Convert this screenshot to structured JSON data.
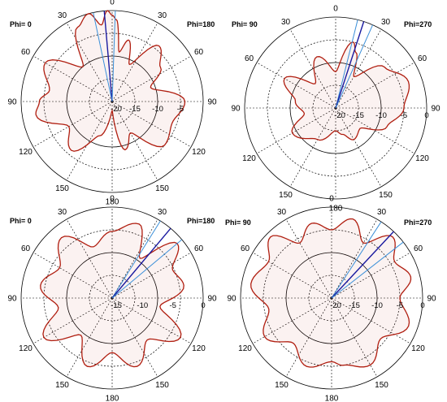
{
  "colors": {
    "curve": "#b01e10",
    "beam_light": "#3a8fd8",
    "beam_dark": "#1a1aa0"
  },
  "chart_data": [
    {
      "type": "polar",
      "phi_left": "Phi=  0",
      "phi_right": "Phi=180",
      "angle_labels": [
        "0",
        "30",
        "60",
        "90",
        "120",
        "150",
        "180",
        "150",
        "120",
        "90",
        "60",
        "30"
      ],
      "radial_ticks": [
        "-20",
        "-15",
        "-10",
        "-5"
      ],
      "rlim": [
        -20,
        0
      ],
      "beam_angles": [
        -12,
        -5,
        2
      ],
      "pattern": {
        "theta": [
          -180,
          -160,
          -140,
          -120,
          -100,
          -90,
          -80,
          -60,
          -40,
          -25,
          -15,
          -8,
          -3,
          0,
          3,
          8,
          15,
          25,
          40,
          55,
          70,
          90,
          110,
          130,
          150,
          165,
          180
        ],
        "r_db": [
          -18,
          -12,
          -6,
          -9,
          -3,
          -4,
          -6,
          -3,
          -10,
          -2,
          0,
          -3,
          0,
          -1,
          -2,
          -9,
          -6,
          -11,
          -4,
          -7,
          -11,
          -4,
          -6,
          -5,
          -12,
          -9,
          -18
        ]
      }
    },
    {
      "type": "polar",
      "phi_left": "Phi= 90",
      "phi_right": "Phi=270",
      "angle_labels": [
        "0",
        "30",
        "60",
        "90",
        "120",
        "150",
        "180",
        "150",
        "120",
        "90",
        "60",
        "30"
      ],
      "radial_ticks": [
        "-20",
        "-15",
        "-10",
        "-5",
        "0"
      ],
      "rlim": [
        -20,
        0
      ],
      "beam_angles": [
        14,
        18,
        24
      ],
      "pattern": {
        "theta": [
          -180,
          -150,
          -120,
          -100,
          -80,
          -60,
          -40,
          -20,
          0,
          15,
          20,
          30,
          50,
          70,
          90,
          110,
          130,
          150,
          165,
          180
        ],
        "r_db": [
          -15,
          -12,
          -9,
          -13,
          -11,
          -7,
          -13,
          -8,
          -12,
          -5,
          -7,
          -12,
          -6,
          -3,
          -5,
          -8,
          -13,
          -12,
          -14,
          -15
        ]
      }
    },
    {
      "type": "polar",
      "phi_left": "Phi=  0",
      "phi_right": "Phi=180",
      "angle_labels": [
        "0",
        "30",
        "60",
        "90",
        "120",
        "150",
        "180",
        "150",
        "120",
        "90",
        "60",
        "30"
      ],
      "radial_ticks": [
        "-15",
        "-10",
        "-5",
        "0"
      ],
      "rlim": [
        -15,
        0
      ],
      "beam_angles": [
        32,
        40,
        50
      ],
      "pattern": {
        "theta": [
          -180,
          -160,
          -140,
          -120,
          -100,
          -80,
          -60,
          -40,
          -20,
          0,
          20,
          35,
          50,
          65,
          80,
          100,
          120,
          140,
          160,
          180
        ],
        "r_db": [
          -6,
          -3,
          -7,
          -2,
          -6,
          -3,
          -5,
          -2,
          -6,
          -4,
          -2,
          -7,
          -1,
          -4,
          -3,
          -7,
          -2,
          -6,
          -3,
          -6
        ]
      }
    },
    {
      "type": "polar",
      "phi_left": "Phi= 90",
      "phi_right": "Phi=270",
      "angle_labels": [
        "0",
        "30",
        "60",
        "90",
        "120",
        "150",
        "180",
        "150",
        "120",
        "90",
        "60",
        "30"
      ],
      "radial_ticks": [
        "-20",
        "-15",
        "-10",
        "-5",
        "0"
      ],
      "rlim": [
        -20,
        0
      ],
      "beam_angles": [
        33,
        43,
        52
      ],
      "pattern": {
        "theta": [
          -180,
          -160,
          -140,
          -120,
          -100,
          -80,
          -60,
          -45,
          -30,
          -15,
          0,
          15,
          30,
          45,
          60,
          75,
          90,
          110,
          130,
          150,
          170,
          180
        ],
        "r_db": [
          -6,
          -4,
          -7,
          -3,
          -6,
          -2,
          -4,
          -1,
          -6,
          -3,
          -5,
          -2,
          -6,
          -1,
          -4,
          -2,
          -5,
          -2,
          -6,
          -3,
          -5,
          -6
        ]
      }
    }
  ]
}
